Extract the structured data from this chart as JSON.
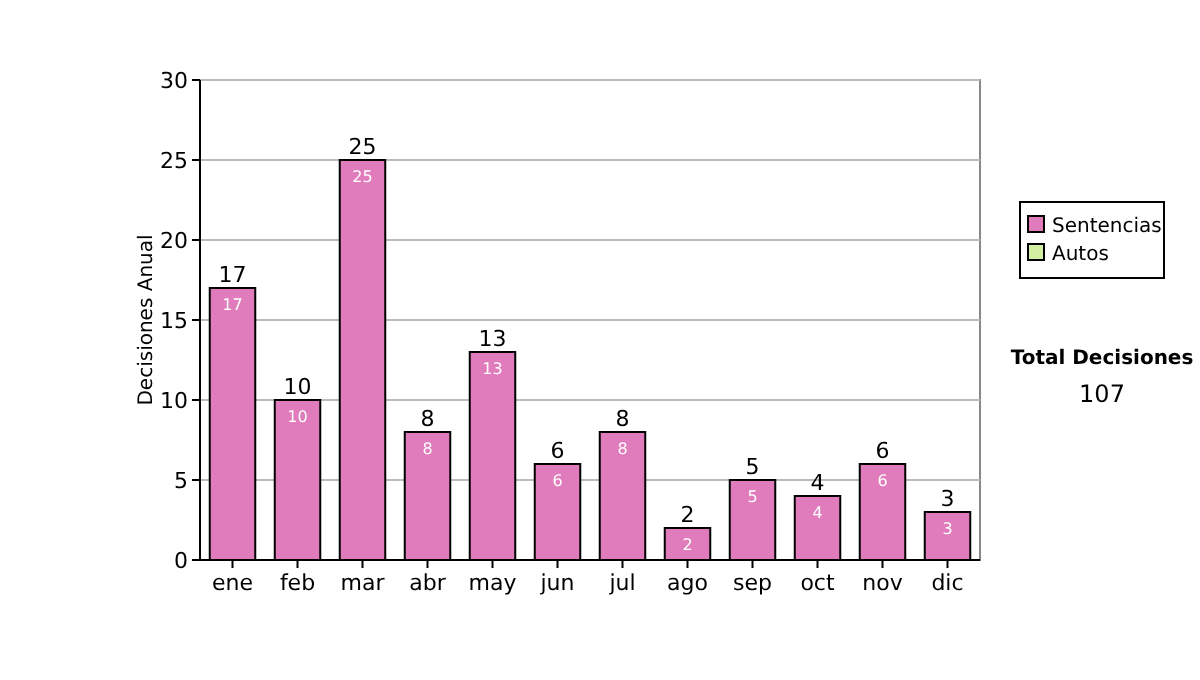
{
  "chart_data": {
    "type": "bar",
    "ylabel": "Decisiones Anual",
    "categories": [
      "ene",
      "feb",
      "mar",
      "abr",
      "may",
      "jun",
      "jul",
      "ago",
      "sep",
      "oct",
      "nov",
      "dic"
    ],
    "series": [
      {
        "name": "Sentencias",
        "color": "#e07cbc",
        "values": [
          17,
          10,
          25,
          8,
          13,
          6,
          8,
          2,
          5,
          4,
          6,
          3
        ]
      },
      {
        "name": "Autos",
        "color": "#d4eea4",
        "values": [
          null,
          null,
          null,
          null,
          null,
          null,
          null,
          null,
          null,
          null,
          null,
          null
        ]
      }
    ],
    "stacked": true,
    "data_labels": true,
    "totals": [
      "17",
      "10",
      "25",
      "8",
      "13",
      "6",
      "8",
      "2",
      "5",
      "4",
      "6",
      "3"
    ],
    "ylim": [
      0,
      30
    ],
    "yticks": [
      0,
      5,
      10,
      15,
      20,
      25,
      30
    ],
    "grid": "y",
    "legend": "right",
    "annotations": [
      "Total Decisiones",
      "107"
    ]
  }
}
